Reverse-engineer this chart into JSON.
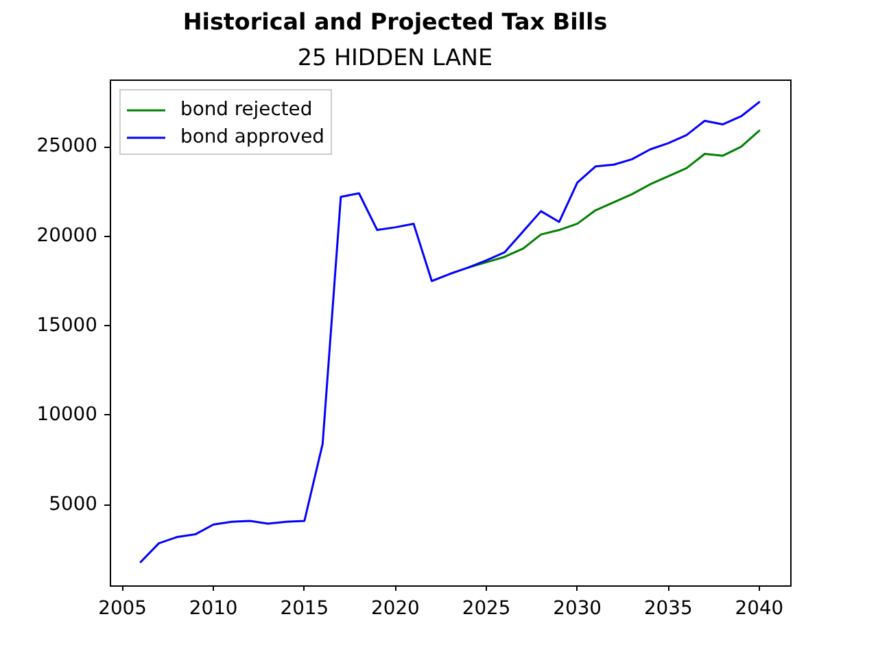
{
  "chart_data": {
    "type": "line",
    "title": "Historical and Projected Tax Bills",
    "subtitle": "25 HIDDEN LANE",
    "x": [
      2006,
      2007,
      2008,
      2009,
      2010,
      2011,
      2012,
      2013,
      2014,
      2015,
      2016,
      2017,
      2018,
      2019,
      2020,
      2021,
      2022,
      2023,
      2024,
      2025,
      2026,
      2027,
      2028,
      2029,
      2030,
      2031,
      2032,
      2033,
      2034,
      2035,
      2036,
      2037,
      2038,
      2039,
      2040
    ],
    "series": [
      {
        "name": "bond rejected",
        "color": "#008000",
        "values": [
          null,
          null,
          null,
          null,
          null,
          null,
          null,
          null,
          null,
          null,
          null,
          null,
          null,
          null,
          null,
          null,
          null,
          null,
          18250,
          18550,
          18850,
          19300,
          20100,
          20350,
          20700,
          21450,
          21900,
          22350,
          22900,
          23350,
          23800,
          24600,
          24500,
          25000,
          25900
        ]
      },
      {
        "name": "bond approved",
        "color": "#0000ff",
        "values": [
          1800,
          2850,
          3200,
          3350,
          3900,
          4050,
          4100,
          3950,
          4050,
          4100,
          8400,
          22200,
          22400,
          20350,
          20500,
          20700,
          17500,
          17900,
          18250,
          18650,
          19100,
          20250,
          21400,
          20800,
          23000,
          23900,
          24000,
          24300,
          24850,
          25200,
          25650,
          26450,
          26250,
          26700,
          27500
        ]
      }
    ],
    "xlim": [
      2004.3,
      2041.7
    ],
    "ylim": [
      500,
      28750
    ],
    "xticks": [
      2005,
      2010,
      2015,
      2020,
      2025,
      2030,
      2035,
      2040
    ],
    "yticks": [
      5000,
      10000,
      15000,
      20000,
      25000
    ],
    "grid": false,
    "legend": "top left"
  }
}
